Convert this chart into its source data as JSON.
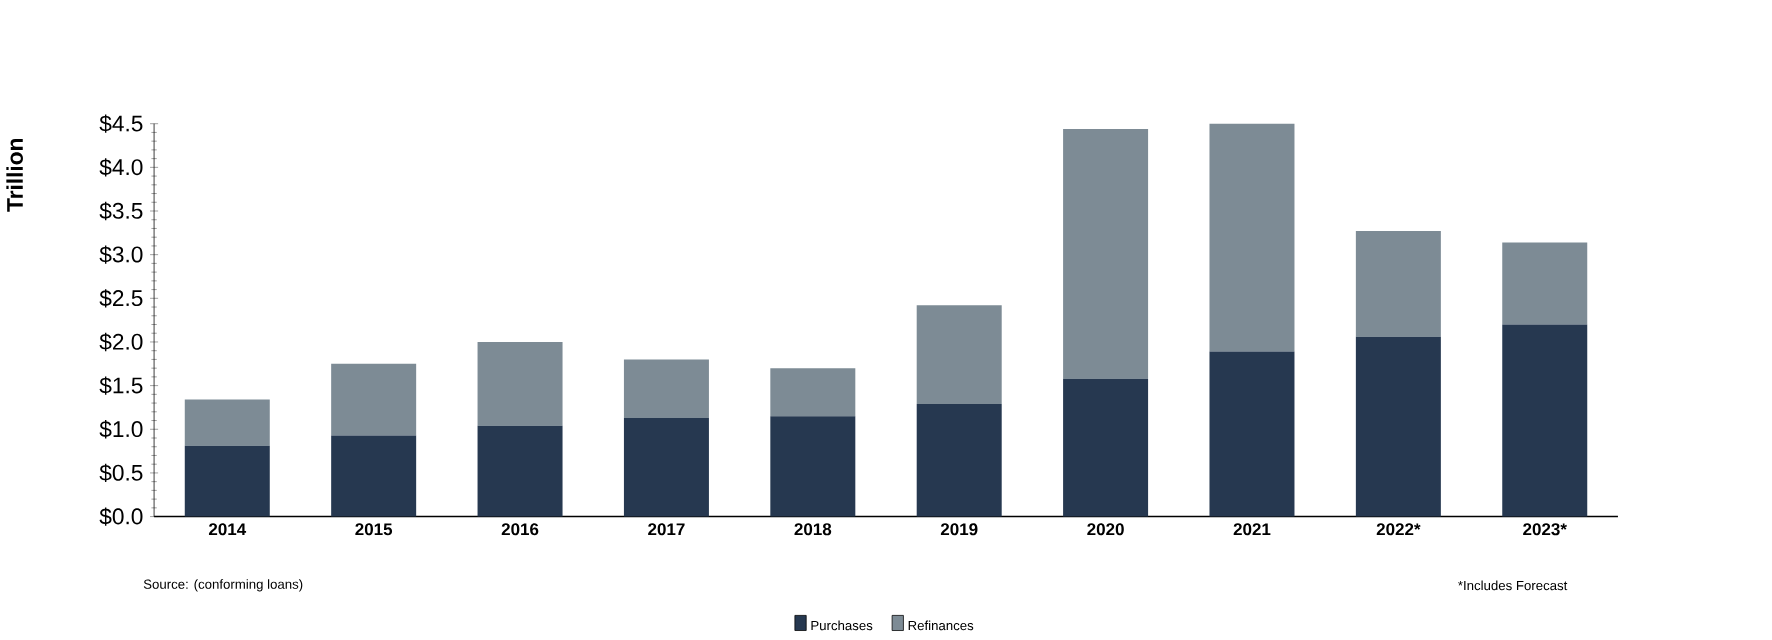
{
  "chart_data": {
    "type": "bar",
    "stacked": true,
    "ylabel": "Trillion",
    "categories": [
      "2014",
      "2015",
      "2016",
      "2017",
      "2018",
      "2019",
      "2020",
      "2021",
      "2022*",
      "2023*"
    ],
    "series": [
      {
        "name": "Purchases",
        "color": "#263850",
        "values": [
          0.81,
          0.93,
          1.04,
          1.13,
          1.15,
          1.29,
          1.58,
          1.89,
          2.06,
          2.2
        ]
      },
      {
        "name": "Refinances",
        "color": "#7d8b95",
        "values": [
          0.53,
          0.82,
          0.96,
          0.67,
          0.55,
          1.13,
          2.86,
          2.61,
          1.21,
          0.94
        ]
      }
    ],
    "ylim": [
      0,
      4.5
    ],
    "yticks": [
      {
        "value": 0,
        "label": "$0.0"
      },
      {
        "value": 0.5,
        "label": "$0.5"
      },
      {
        "value": 1,
        "label": "$1.0"
      },
      {
        "value": 1.5,
        "label": "$1.5"
      },
      {
        "value": 2,
        "label": "$2.0"
      },
      {
        "value": 2.5,
        "label": "$2.5"
      },
      {
        "value": 3,
        "label": "$3.0"
      },
      {
        "value": 3.5,
        "label": "$3.5"
      },
      {
        "value": 4,
        "label": "$4.0"
      },
      {
        "value": 4.5,
        "label": "$4.5"
      }
    ],
    "grid": false,
    "legend": "bottom",
    "annotations": [
      "Source: (conforming loans)",
      "*Includes Forecast"
    ]
  }
}
